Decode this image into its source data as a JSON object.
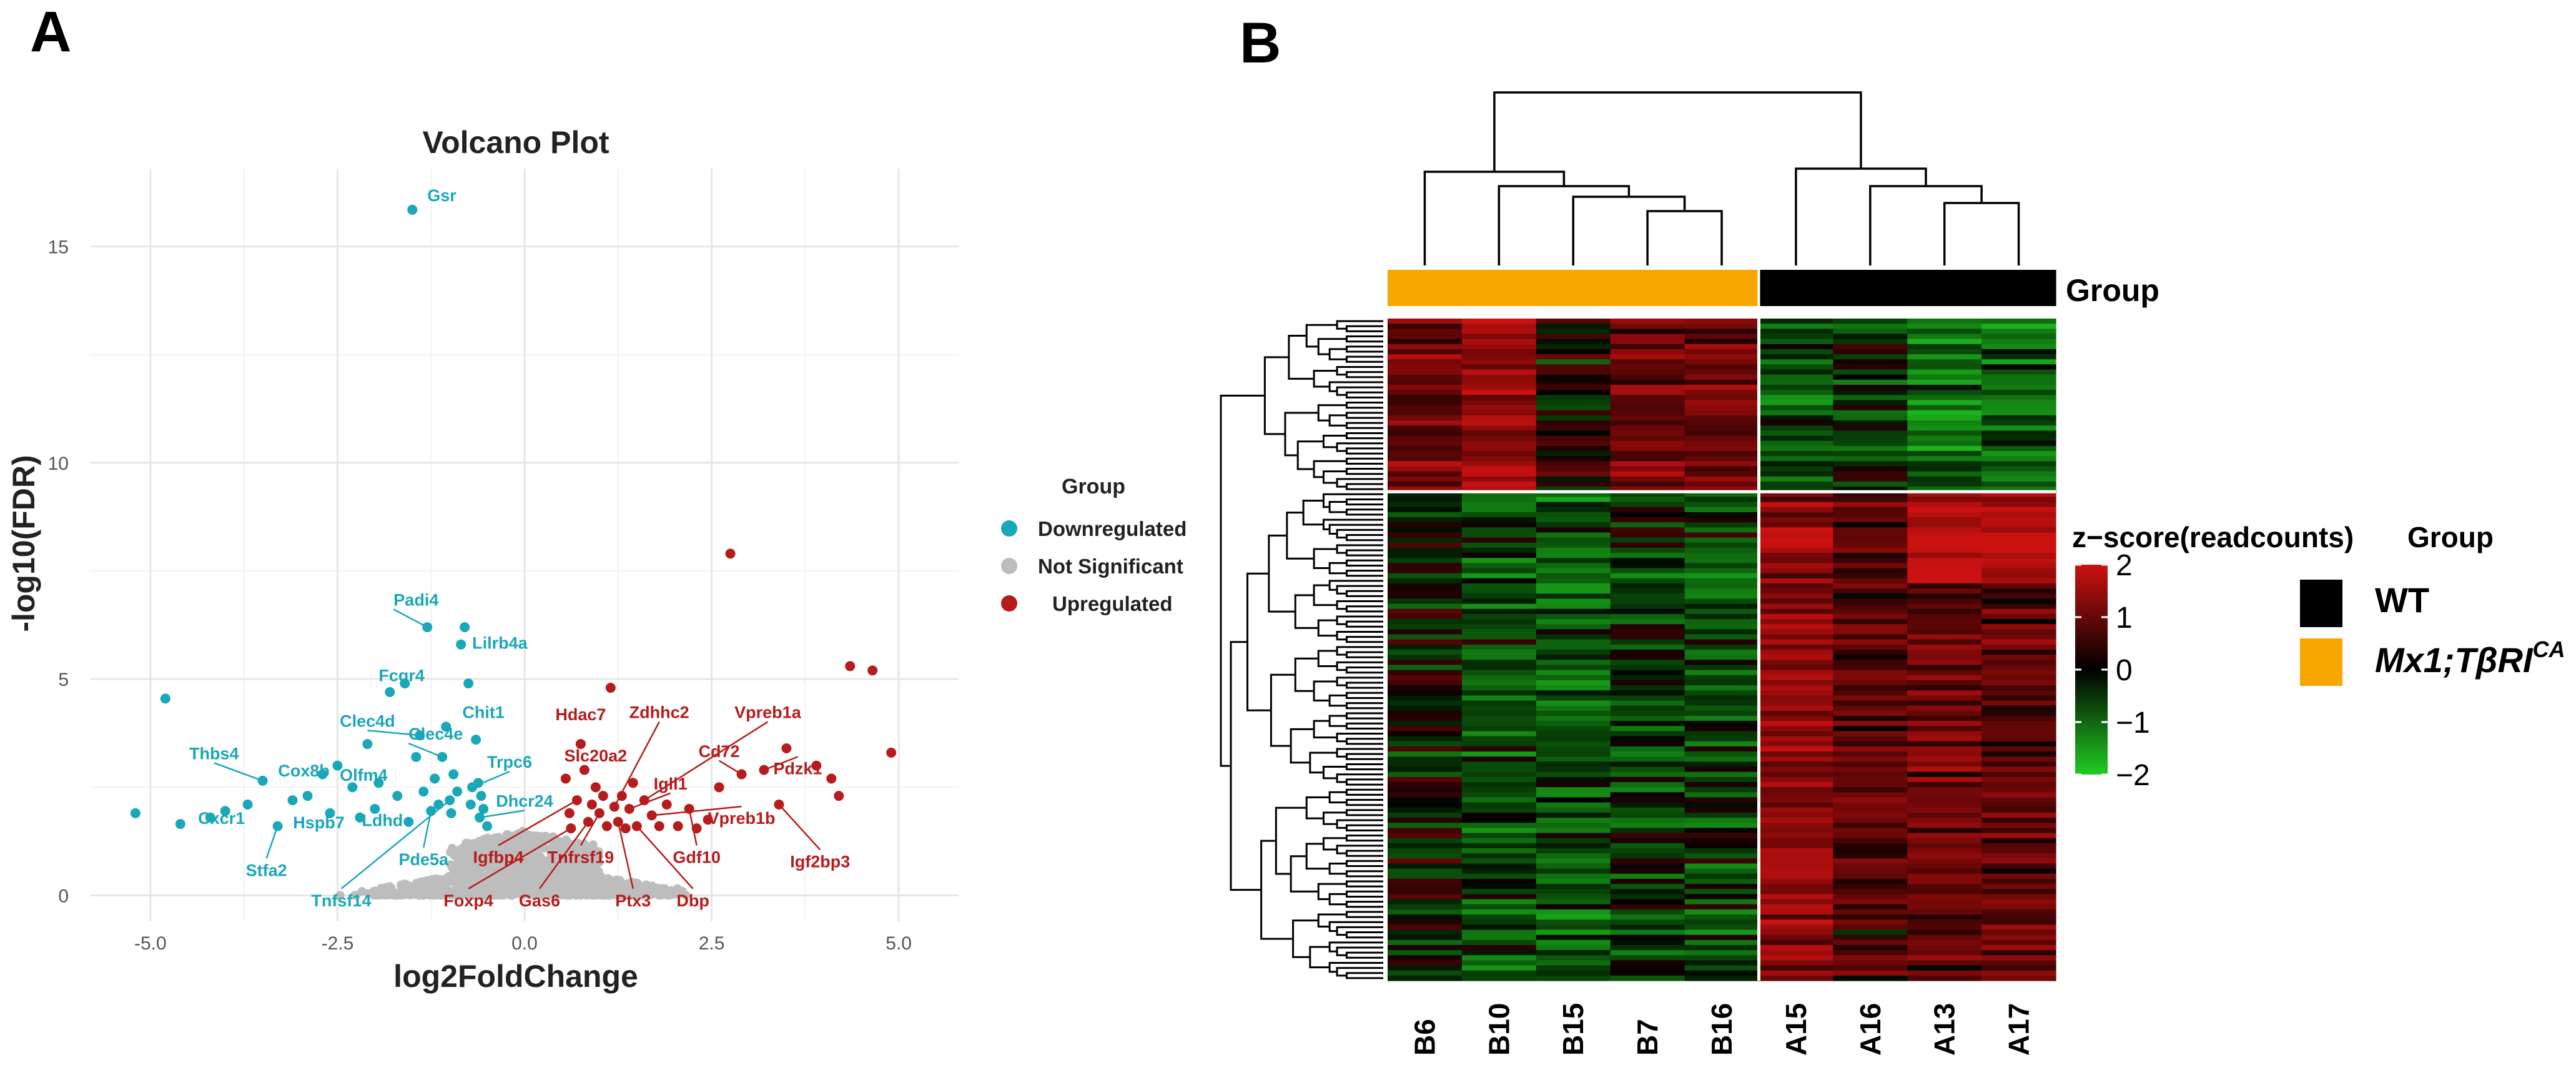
{
  "panels": {
    "a": "A",
    "b": "B"
  },
  "colors": {
    "down": "#1AA7B8",
    "ns": "#BDBDBD",
    "up": "#B71C1C",
    "orange": "#F7A700",
    "black": "#000000"
  },
  "chart_data": [
    {
      "type": "scatter",
      "title": "Volcano Plot",
      "xlabel": "log2FoldChange",
      "ylabel": "-log10(FDR)",
      "xlim": [
        -5.8,
        5.8
      ],
      "ylim": [
        -0.6,
        16.8
      ],
      "xticks": [
        -5,
        -2.5,
        0,
        2.5,
        5
      ],
      "xtick_labels": [
        "-5.0",
        "-2.5",
        "0.0",
        "2.5",
        "5.0"
      ],
      "yticks": [
        0,
        5,
        10,
        15
      ],
      "ytick_labels": [
        "0",
        "5",
        "10",
        "15"
      ],
      "grid": true,
      "legend_title": "Group",
      "legend_position": "right",
      "series": [
        {
          "name": "Downregulated",
          "color": "#1AA7B8",
          "points": [
            {
              "x": -1.5,
              "y": 15.85,
              "label": "Gsr"
            },
            {
              "x": -4.8,
              "y": 4.55
            },
            {
              "x": -5.2,
              "y": 1.9
            },
            {
              "x": -4.6,
              "y": 1.65
            },
            {
              "x": -4.2,
              "y": 1.8,
              "label": "Cxcr1"
            },
            {
              "x": -4.0,
              "y": 1.95
            },
            {
              "x": -3.5,
              "y": 2.65,
              "label": "Thbs4"
            },
            {
              "x": -3.3,
              "y": 1.6,
              "label": "Stfa2"
            },
            {
              "x": -3.1,
              "y": 2.2
            },
            {
              "x": -2.9,
              "y": 2.3,
              "label": "Cox8b"
            },
            {
              "x": -2.6,
              "y": 1.9,
              "label": "Hspb7"
            },
            {
              "x": -2.5,
              "y": 3.0
            },
            {
              "x": -2.3,
              "y": 2.5
            },
            {
              "x": -2.2,
              "y": 1.8,
              "label": "Ldhd"
            },
            {
              "x": -2.1,
              "y": 3.5
            },
            {
              "x": -1.95,
              "y": 2.6,
              "label": "Olfm4"
            },
            {
              "x": -1.8,
              "y": 4.7
            },
            {
              "x": -1.6,
              "y": 4.9,
              "label": "Fcgr4"
            },
            {
              "x": -1.45,
              "y": 3.2
            },
            {
              "x": -1.4,
              "y": 3.7,
              "label": "Clec4d"
            },
            {
              "x": -1.3,
              "y": 6.2,
              "label": "Padi4"
            },
            {
              "x": -1.2,
              "y": 2.7
            },
            {
              "x": -1.1,
              "y": 3.2,
              "label": "Clec4e"
            },
            {
              "x": -1.05,
              "y": 3.9
            },
            {
              "x": -1.0,
              "y": 2.2,
              "label": "Tnfsf14"
            },
            {
              "x": -0.95,
              "y": 2.8
            },
            {
              "x": -0.9,
              "y": 2.4
            },
            {
              "x": -0.85,
              "y": 5.8,
              "label": "Lilrb4a"
            },
            {
              "x": -0.8,
              "y": 6.2
            },
            {
              "x": -0.75,
              "y": 4.9
            },
            {
              "x": -0.7,
              "y": 2.5,
              "label": "Trpc6"
            },
            {
              "x": -0.65,
              "y": 3.6,
              "label": "Chit1"
            },
            {
              "x": -0.6,
              "y": 1.8,
              "label": "Dhcr24"
            },
            {
              "x": -0.55,
              "y": 2.0
            },
            {
              "x": -0.5,
              "y": 1.6
            },
            {
              "x": -1.25,
              "y": 1.95,
              "label": "Pde5a"
            },
            {
              "x": -1.7,
              "y": 2.3
            },
            {
              "x": -3.7,
              "y": 2.1
            },
            {
              "x": -2.7,
              "y": 2.8
            },
            {
              "x": -1.55,
              "y": 1.7
            },
            {
              "x": -0.98,
              "y": 1.9
            },
            {
              "x": -0.72,
              "y": 2.1
            },
            {
              "x": -0.62,
              "y": 2.6
            },
            {
              "x": -0.58,
              "y": 2.3
            },
            {
              "x": -1.15,
              "y": 2.1
            },
            {
              "x": -2.0,
              "y": 2.0
            },
            {
              "x": -1.35,
              "y": 2.4
            }
          ]
        },
        {
          "name": "Not Significant",
          "color": "#BDBDBD",
          "points": []
        },
        {
          "name": "Upregulated",
          "color": "#B71C1C",
          "points": [
            {
              "x": 2.75,
              "y": 7.9
            },
            {
              "x": 4.35,
              "y": 5.3
            },
            {
              "x": 4.65,
              "y": 5.2
            },
            {
              "x": 4.9,
              "y": 3.3
            },
            {
              "x": 3.5,
              "y": 3.4
            },
            {
              "x": 3.2,
              "y": 2.9,
              "label": "Pdzk1"
            },
            {
              "x": 4.1,
              "y": 2.7
            },
            {
              "x": 3.9,
              "y": 3.0
            },
            {
              "x": 4.2,
              "y": 2.3
            },
            {
              "x": 3.4,
              "y": 2.1,
              "label": "Igf2bp3"
            },
            {
              "x": 2.9,
              "y": 2.8,
              "label": "Cd72"
            },
            {
              "x": 2.6,
              "y": 2.5
            },
            {
              "x": 2.2,
              "y": 2.0,
              "label": "Gdf10"
            },
            {
              "x": 2.3,
              "y": 1.55
            },
            {
              "x": 1.7,
              "y": 1.85,
              "label": "Vpreb1b"
            },
            {
              "x": 1.6,
              "y": 2.2,
              "label": "Vpreb1a"
            },
            {
              "x": 1.5,
              "y": 1.6,
              "label": "Dbp"
            },
            {
              "x": 1.4,
              "y": 2.0,
              "label": "Igll1"
            },
            {
              "x": 1.3,
              "y": 2.3
            },
            {
              "x": 1.25,
              "y": 1.7,
              "label": "Ptx3"
            },
            {
              "x": 1.2,
              "y": 2.05,
              "label": "Zdhhc2"
            },
            {
              "x": 1.15,
              "y": 4.8
            },
            {
              "x": 1.1,
              "y": 1.6
            },
            {
              "x": 1.0,
              "y": 1.9,
              "label": "Tnfrsf19"
            },
            {
              "x": 0.95,
              "y": 2.5,
              "label": "Slc20a2"
            },
            {
              "x": 0.85,
              "y": 1.7,
              "label": "Gas6"
            },
            {
              "x": 0.75,
              "y": 3.5,
              "label": "Hdac7"
            },
            {
              "x": 0.7,
              "y": 2.2,
              "label": "Igfbp4"
            },
            {
              "x": 0.62,
              "y": 1.55,
              "label": "Foxp4"
            },
            {
              "x": 0.6,
              "y": 1.9
            },
            {
              "x": 0.55,
              "y": 2.7
            },
            {
              "x": 1.8,
              "y": 1.6
            },
            {
              "x": 1.9,
              "y": 2.1
            },
            {
              "x": 2.05,
              "y": 1.6
            },
            {
              "x": 2.45,
              "y": 1.75
            },
            {
              "x": 1.35,
              "y": 1.55
            },
            {
              "x": 0.9,
              "y": 2.1
            },
            {
              "x": 0.8,
              "y": 2.9
            },
            {
              "x": 1.05,
              "y": 2.3
            },
            {
              "x": 1.45,
              "y": 2.6
            }
          ]
        }
      ]
    },
    {
      "type": "heatmap",
      "title": "",
      "columns": [
        "B6",
        "B10",
        "B15",
        "B7",
        "B16",
        "A15",
        "A16",
        "A13",
        "A17"
      ],
      "column_groups": [
        "Mx1;TβRI^CA",
        "Mx1;TβRI^CA",
        "Mx1;TβRI^CA",
        "Mx1;TβRI^CA",
        "Mx1;TβRI^CA",
        "WT",
        "WT",
        "WT",
        "WT"
      ],
      "group_bar_label": "Group",
      "rows_count": 130,
      "cluster1_rows": 34,
      "colorbar_title": "z−score(readcounts)",
      "colorbar_ticks": [
        2,
        1,
        0,
        -1,
        -2
      ],
      "colorbar_tick_labels": [
        "2",
        "1",
        "0",
        "−1",
        "−2"
      ],
      "color_low": "#22CC22",
      "color_mid": "#000000",
      "color_high": "#CC1111",
      "zlim": [
        -2,
        2
      ],
      "legend_title": "Group",
      "legend": [
        {
          "label": "WT",
          "color": "#000000"
        },
        {
          "label": "Mx1;TβRI",
          "sup": "CA",
          "color": "#F7A700"
        }
      ],
      "cluster1_profile": [
        1.0,
        1.3,
        0.1,
        0.9,
        0.9,
        -0.6,
        -0.2,
        -0.9,
        -0.7
      ],
      "cluster2_profile": [
        -0.05,
        -0.5,
        -0.65,
        -0.35,
        -0.45,
        1.2,
        0.6,
        0.85,
        0.75
      ]
    }
  ]
}
